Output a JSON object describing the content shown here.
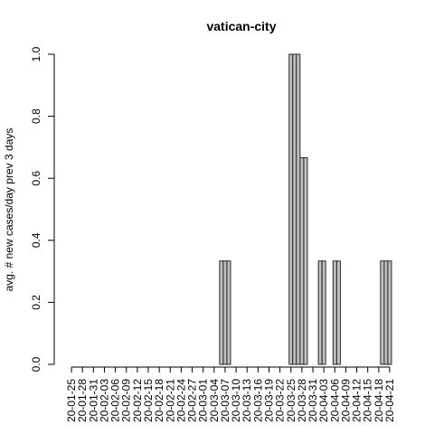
{
  "chart_data": {
    "type": "bar",
    "title": "vatican-city",
    "xlabel": "",
    "ylabel": "avg. # new cases/day prev  3  days",
    "ylim": [
      0,
      1
    ],
    "yticks": [
      "0.0",
      "0.2",
      "0.4",
      "0.6",
      "0.8",
      "1.0"
    ],
    "bar_fill": "#bebebe",
    "bar_stroke": "#000000",
    "start_date": "2020-01-24",
    "tick_dates": [
      "20-01-25",
      "20-01-28",
      "20-01-31",
      "20-02-03",
      "20-02-06",
      "20-02-09",
      "20-02-12",
      "20-02-15",
      "20-02-18",
      "20-02-21",
      "20-02-24",
      "20-02-27",
      "20-03-01",
      "20-03-04",
      "20-03-07",
      "20-03-10",
      "20-03-13",
      "20-03-16",
      "20-03-19",
      "20-03-22",
      "20-03-25",
      "20-03-28",
      "20-03-31",
      "20-04-03",
      "20-04-06",
      "20-04-09",
      "20-04-12",
      "20-04-15",
      "20-04-18",
      "20-04-21"
    ],
    "values": [
      0,
      0,
      0,
      0,
      0,
      0,
      0,
      0,
      0,
      0,
      0,
      0,
      0,
      0,
      0,
      0,
      0,
      0,
      0,
      0,
      0,
      0,
      0,
      0,
      0,
      0,
      0,
      0,
      0,
      0,
      0,
      0,
      0,
      0,
      0,
      0,
      0,
      0,
      0,
      0,
      0,
      0,
      0.3333,
      0.3333,
      0.3333,
      0,
      0,
      0,
      0,
      0,
      0,
      0,
      0,
      0,
      0,
      0,
      0,
      0,
      0,
      0,
      0,
      1,
      1,
      1,
      0.6667,
      0.6667,
      0,
      0,
      0,
      0.3333,
      0.3333,
      0,
      0,
      0.3333,
      0.3333,
      0,
      0,
      0,
      0,
      0,
      0,
      0,
      0,
      0,
      0,
      0,
      0.3333,
      0.3333,
      0.3333
    ]
  }
}
